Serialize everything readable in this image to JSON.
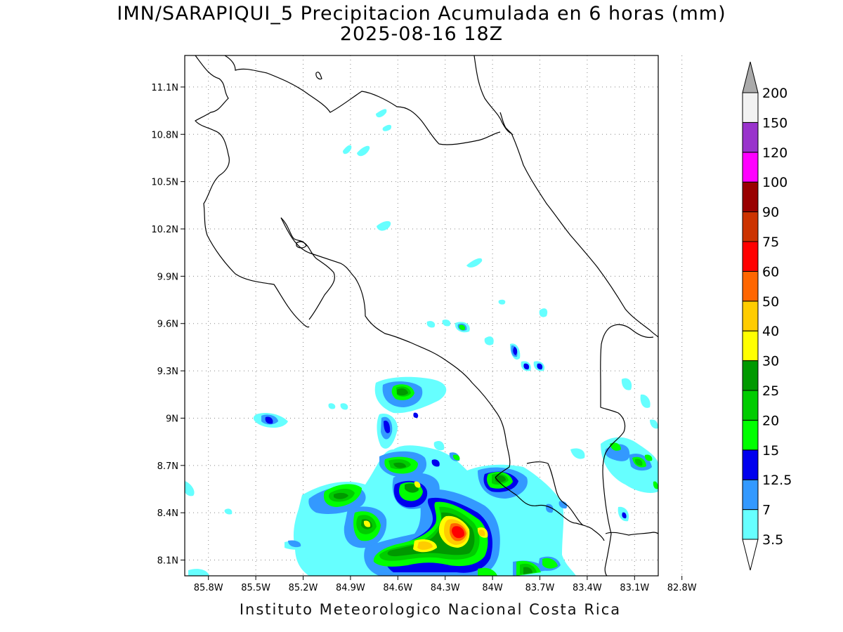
{
  "title": {
    "line1": "IMN/SARAPIQUI_5 Precipitacion Acumulada en 6 horas (mm)",
    "line2": "2025-08-16 18Z"
  },
  "footer": "Instituto Meteorologico Nacional Costa Rica",
  "axes": {
    "lon_labels": [
      "85.8W",
      "85.5W",
      "85.2W",
      "84.9W",
      "84.6W",
      "84.3W",
      "84W",
      "83.7W",
      "83.4W",
      "83.1W",
      "82.8W"
    ],
    "lat_labels": [
      "11.1N",
      "10.8N",
      "10.5N",
      "10.2N",
      "9.9N",
      "9.6N",
      "9.3N",
      "9N",
      "8.7N",
      "8.4N",
      "8.1N"
    ],
    "lon_values": [
      -85.8,
      -85.5,
      -85.2,
      -84.9,
      -84.6,
      -84.3,
      -84.0,
      -83.7,
      -83.4,
      -83.1,
      -82.8
    ],
    "lat_values": [
      11.1,
      10.8,
      10.5,
      10.2,
      9.9,
      9.6,
      9.3,
      9.0,
      8.7,
      8.4,
      8.1
    ],
    "lon_range": [
      -85.95,
      -82.95
    ],
    "lat_range": [
      8.0,
      11.3
    ],
    "grid": "dotted"
  },
  "colorbar": {
    "labels": [
      "3.5",
      "7",
      "12.5",
      "15",
      "20",
      "25",
      "30",
      "40",
      "50",
      "60",
      "75",
      "90",
      "100",
      "120",
      "150",
      "200"
    ],
    "colors": [
      "#66ffff",
      "#3399ff",
      "#0000ee",
      "#00ff00",
      "#00cc00",
      "#009900",
      "#ffff00",
      "#ffcc00",
      "#ff6600",
      "#ff0000",
      "#cc3300",
      "#990000",
      "#ff00ff",
      "#9933cc",
      "#f2f2f2"
    ],
    "over_color": "#aaaaaa",
    "under_color": "#ffffff"
  }
}
